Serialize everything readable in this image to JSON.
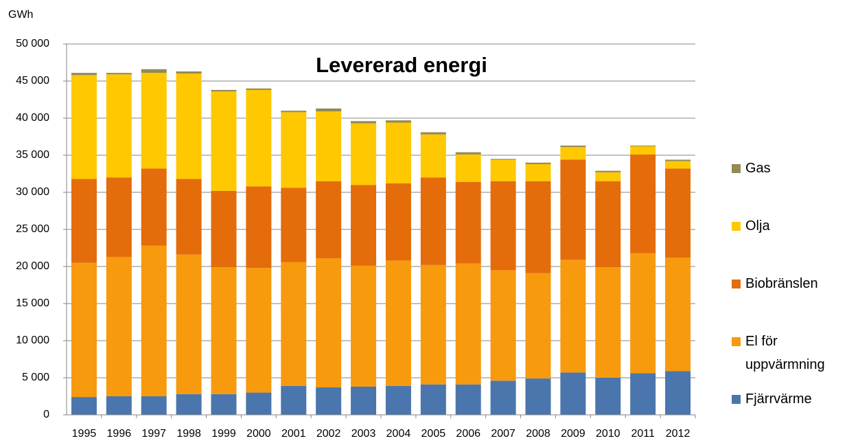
{
  "chart_data": {
    "type": "stacked_bar",
    "title": "Levererad energi",
    "y_label": "GWh",
    "categories": [
      "1995",
      "1996",
      "1997",
      "1998",
      "1999",
      "2000",
      "2001",
      "2002",
      "2003",
      "2004",
      "2005",
      "2006",
      "2007",
      "2008",
      "2009",
      "2010",
      "2011",
      "2012"
    ],
    "series": [
      {
        "name": "Fjärrvärme",
        "color": "#4a76ad",
        "values": [
          2400,
          2500,
          2500,
          2800,
          2800,
          3000,
          3900,
          3700,
          3800,
          3900,
          4100,
          4100,
          4600,
          4900,
          5700,
          5000,
          5600,
          5900
        ]
      },
      {
        "name": "El för uppvärmning",
        "color": "#f79a0e",
        "values": [
          18100,
          18800,
          20300,
          18800,
          17100,
          16800,
          16700,
          17400,
          16300,
          16900,
          16100,
          16300,
          14900,
          14200,
          15200,
          14900,
          16200,
          15300
        ]
      },
      {
        "name": "Biobränslen",
        "color": "#e46c0a",
        "values": [
          11300,
          10700,
          10400,
          10200,
          10300,
          11000,
          10000,
          10400,
          10900,
          10400,
          11800,
          11000,
          12000,
          12400,
          13500,
          11600,
          13300,
          12000
        ]
      },
      {
        "name": "Olja",
        "color": "#ffc800",
        "values": [
          14000,
          13900,
          12900,
          14200,
          13400,
          13000,
          10200,
          9400,
          8300,
          8200,
          5800,
          3700,
          2900,
          2300,
          1700,
          1200,
          1100,
          1000
        ]
      },
      {
        "name": "Gas",
        "color": "#948a54",
        "values": [
          300,
          200,
          500,
          300,
          200,
          200,
          200,
          400,
          300,
          300,
          300,
          300,
          100,
          200,
          200,
          200,
          100,
          200
        ]
      }
    ],
    "ylim": [
      0,
      50000
    ],
    "yticks": [
      0,
      {
        "value": 5000,
        "label": "5 000"
      },
      {
        "value": 10000,
        "label": "10 000"
      },
      {
        "value": 15000,
        "label": "15 000"
      },
      {
        "value": 20000,
        "label": "20 000"
      },
      {
        "value": 25000,
        "label": "25 000"
      },
      {
        "value": 30000,
        "label": "30 000"
      },
      {
        "value": 35000,
        "label": "35 000"
      },
      {
        "value": 40000,
        "label": "40 000"
      },
      {
        "value": 45000,
        "label": "45 000"
      },
      {
        "value": 50000,
        "label": "50 000"
      }
    ],
    "grid": true,
    "legend": "right"
  }
}
